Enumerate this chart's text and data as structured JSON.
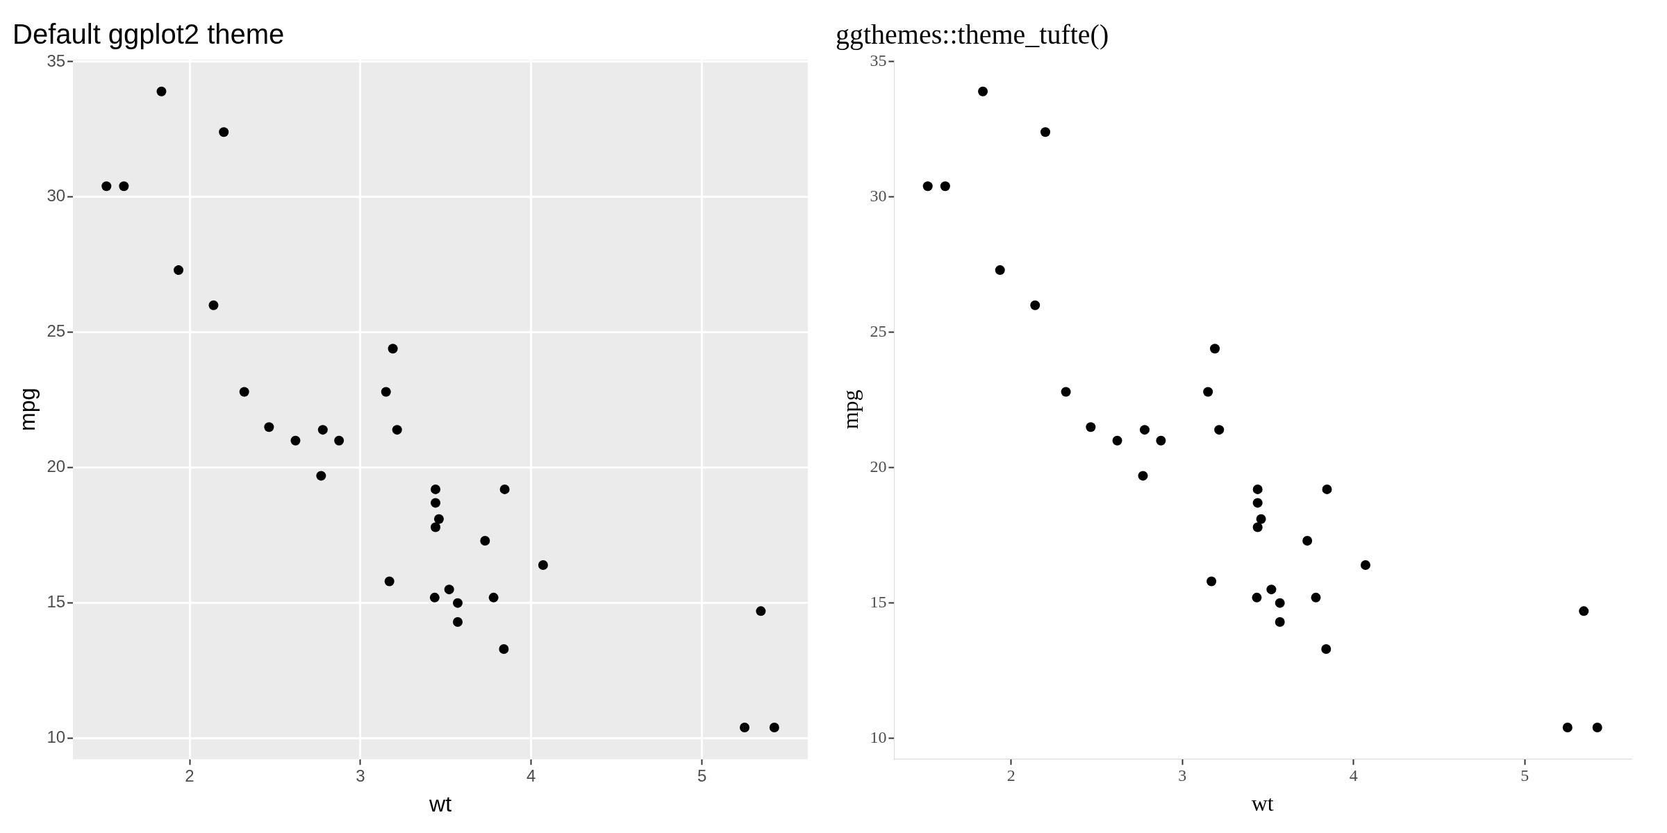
{
  "chart_data": [
    {
      "type": "scatter",
      "title": "Default ggplot2 theme",
      "xlabel": "wt",
      "ylabel": "mpg",
      "marker": "circle",
      "grid": true,
      "legend": false,
      "xlim": [
        1.317,
        5.62
      ],
      "ylim": [
        9.225,
        35.075
      ],
      "xticks": [
        2,
        3,
        4,
        5
      ],
      "yticks": [
        10,
        15,
        20,
        25,
        30,
        35
      ],
      "x": [
        2.62,
        2.875,
        2.32,
        3.215,
        3.44,
        3.46,
        3.57,
        3.19,
        3.15,
        3.44,
        3.44,
        4.07,
        3.73,
        3.78,
        5.25,
        5.424,
        5.345,
        2.2,
        1.615,
        1.835,
        2.465,
        3.52,
        3.435,
        3.84,
        3.845,
        1.935,
        2.14,
        1.513,
        3.17,
        2.77,
        3.57,
        2.78
      ],
      "series": [
        {
          "color": "#000000",
          "values": [
            21.0,
            21.0,
            22.8,
            21.4,
            18.7,
            18.1,
            14.3,
            24.4,
            22.8,
            19.2,
            17.8,
            16.4,
            17.3,
            15.2,
            10.4,
            10.4,
            14.7,
            32.4,
            30.4,
            33.9,
            21.5,
            15.5,
            15.2,
            13.3,
            19.2,
            27.3,
            26.0,
            30.4,
            15.8,
            19.7,
            15.0,
            21.4
          ]
        }
      ]
    },
    {
      "type": "scatter",
      "title": "ggthemes::theme_tufte()",
      "xlabel": "wt",
      "ylabel": "mpg",
      "marker": "circle",
      "grid": false,
      "legend": false,
      "xlim": [
        1.317,
        5.62
      ],
      "ylim": [
        9.225,
        35.075
      ],
      "xticks": [
        2,
        3,
        4,
        5
      ],
      "yticks": [
        10,
        15,
        20,
        25,
        30,
        35
      ],
      "x": [
        2.62,
        2.875,
        2.32,
        3.215,
        3.44,
        3.46,
        3.57,
        3.19,
        3.15,
        3.44,
        3.44,
        4.07,
        3.73,
        3.78,
        5.25,
        5.424,
        5.345,
        2.2,
        1.615,
        1.835,
        2.465,
        3.52,
        3.435,
        3.84,
        3.845,
        1.935,
        2.14,
        1.513,
        3.17,
        2.77,
        3.57,
        2.78
      ],
      "series": [
        {
          "color": "#000000",
          "values": [
            21.0,
            21.0,
            22.8,
            21.4,
            18.7,
            18.1,
            14.3,
            24.4,
            22.8,
            19.2,
            17.8,
            16.4,
            17.3,
            15.2,
            10.4,
            10.4,
            14.7,
            32.4,
            30.4,
            33.9,
            21.5,
            15.5,
            15.2,
            13.3,
            19.2,
            27.3,
            26.0,
            30.4,
            15.8,
            19.7,
            15.0,
            21.4
          ]
        }
      ]
    }
  ]
}
